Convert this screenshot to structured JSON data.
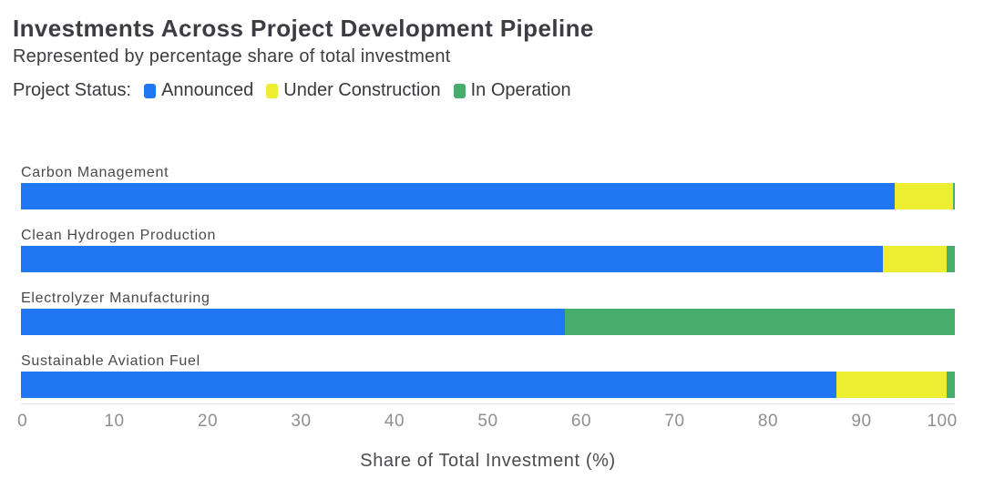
{
  "header": {
    "title": "Investments Across Project Development Pipeline",
    "subtitle": "Represented by percentage share of total investment",
    "legend_label": "Project Status:"
  },
  "legend": {
    "items": [
      {
        "label": "Announced",
        "color": "#2176F2"
      },
      {
        "label": "Under Construction",
        "color": "#EDEE30"
      },
      {
        "label": "In Operation",
        "color": "#47AD6C"
      }
    ]
  },
  "colors": {
    "announced": "#2176F2",
    "under_construction": "#EDEE30",
    "in_operation": "#47AD6C",
    "title_text": "#3C3C42",
    "axis_text": "#8F8F93"
  },
  "chart_data": {
    "type": "bar",
    "orientation": "horizontal",
    "stacked": true,
    "title": "Investments Across Project Development Pipeline",
    "subtitle": "Represented by percentage share of total investment",
    "categories": [
      "Carbon Management",
      "Clean Hydrogen Production",
      "Electrolyzer Manufacturing",
      "Sustainable Aviation Fuel"
    ],
    "series": [
      {
        "name": "Announced",
        "color": "#2176F2",
        "values": [
          93.6,
          92.3,
          58.2,
          87.3
        ]
      },
      {
        "name": "Under Construction",
        "color": "#EDEE30",
        "values": [
          6.2,
          6.8,
          0,
          11.8
        ]
      },
      {
        "name": "In Operation",
        "color": "#47AD6C",
        "values": [
          0.2,
          0.9,
          41.8,
          0.9
        ]
      }
    ],
    "xlabel": "Share of Total Investment (%)",
    "ylabel": "",
    "xlim": [
      0,
      100
    ],
    "x_ticks": [
      0,
      10,
      20,
      30,
      40,
      50,
      60,
      70,
      80,
      90,
      100
    ],
    "grid": false,
    "legend_position": "top"
  }
}
